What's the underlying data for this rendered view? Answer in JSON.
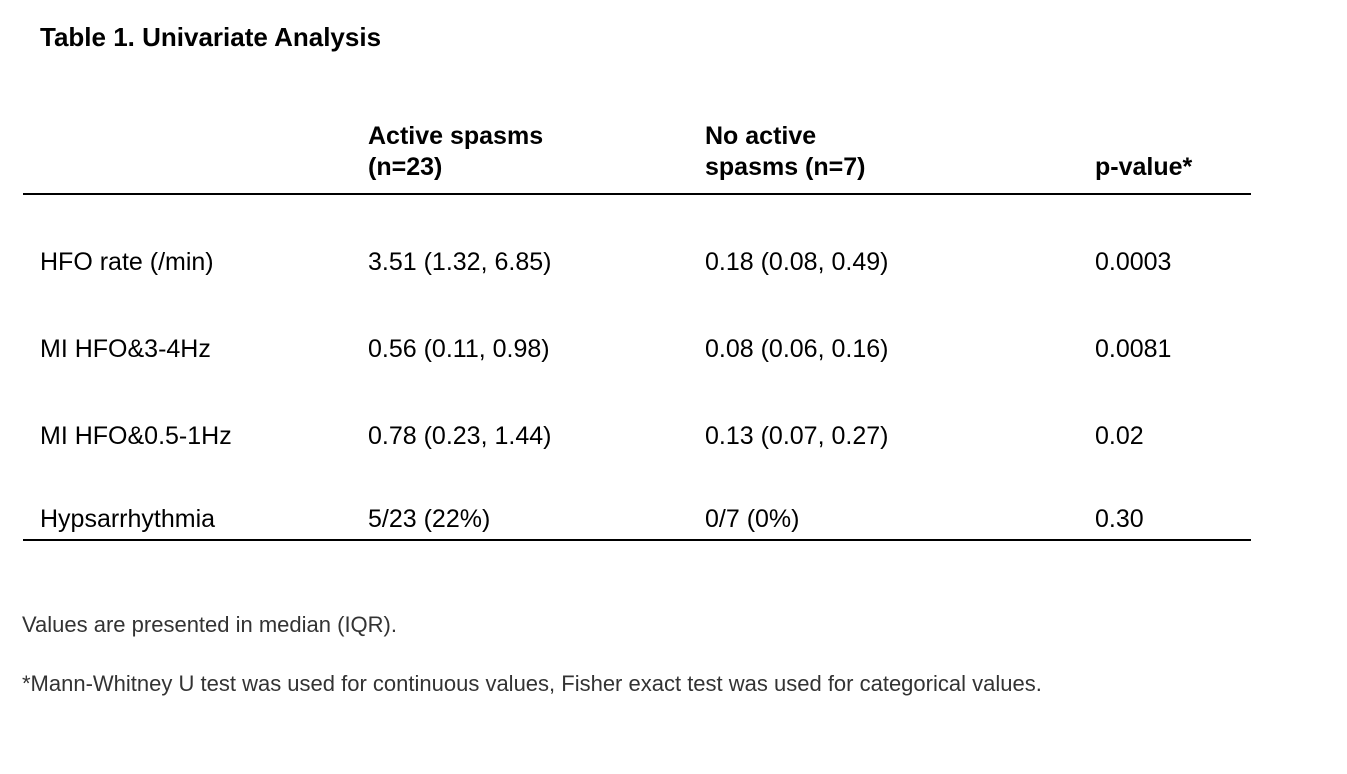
{
  "title": "Table 1. Univariate Analysis",
  "table": {
    "header": {
      "active_spasms": "Active spasms\n(n=23)",
      "no_active_spasms": "No active\nspasms (n=7)",
      "p_value": "p-value*"
    },
    "rows": [
      {
        "label": "HFO rate (/min)",
        "active_spasms": "3.51 (1.32, 6.85)",
        "no_active_spasms": "0.18 (0.08, 0.49)",
        "p_value": "0.0003"
      },
      {
        "label": "MI HFO&3-4Hz",
        "active_spasms": "0.56 (0.11, 0.98)",
        "no_active_spasms": "0.08 (0.06, 0.16)",
        "p_value": "0.0081"
      },
      {
        "label": "MI HFO&0.5-1Hz",
        "active_spasms": "0.78 (0.23, 1.44)",
        "no_active_spasms": "0.13 (0.07, 0.27)",
        "p_value": "0.02"
      },
      {
        "label": "Hypsarrhythmia",
        "active_spasms": "5/23 (22%)",
        "no_active_spasms": "0/7 (0%)",
        "p_value": "0.30"
      }
    ]
  },
  "footnotes": [
    "Values are presented in median (IQR).",
    "*Mann-Whitney U test was used for continuous values, Fisher exact test was used for categorical values."
  ]
}
